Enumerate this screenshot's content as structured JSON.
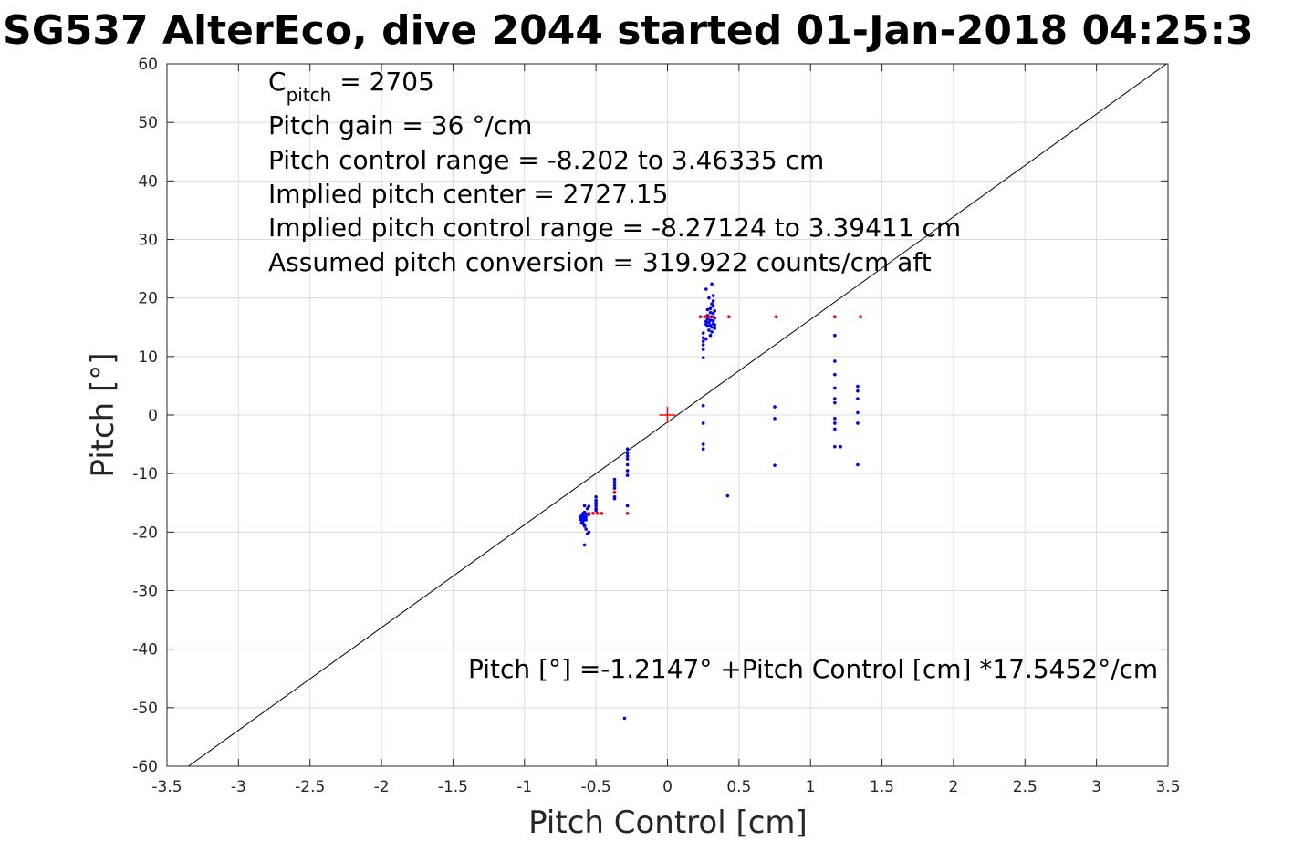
{
  "title": "SG537 AlterEco, dive 2044 started 01-Jan-2018 04:25:3",
  "chart_data": {
    "type": "scatter",
    "xlabel": "Pitch Control [cm]",
    "ylabel": "Pitch [°]",
    "xlim": [
      -3.5,
      3.5
    ],
    "ylim": [
      -60,
      60
    ],
    "xticks": [
      -3.5,
      -3,
      -2.5,
      -2,
      -1.5,
      -1,
      -0.5,
      0,
      0.5,
      1,
      1.5,
      2,
      2.5,
      3,
      3.5
    ],
    "yticks": [
      -60,
      -50,
      -40,
      -30,
      -20,
      -10,
      0,
      10,
      20,
      30,
      40,
      50,
      60
    ],
    "xtick_labels": [
      "-3.5",
      "-3",
      "-2.5",
      "-2",
      "-1.5",
      "-1",
      "-0.5",
      "0",
      "0.5",
      "1",
      "1.5",
      "2",
      "2.5",
      "3",
      "3.5"
    ],
    "ytick_labels": [
      "-60",
      "-50",
      "-40",
      "-30",
      "-20",
      "-10",
      "0",
      "10",
      "20",
      "30",
      "40",
      "50",
      "60"
    ],
    "grid": true,
    "annotations": {
      "c_pitch_main": "C",
      "c_pitch_sub": "pitch",
      "c_pitch_value": " = 2705",
      "lines": [
        "Pitch gain = 36 °/cm",
        "Pitch control range = -8.202 to 3.46335 cm",
        "Implied pitch center = 2727.15",
        "Implied pitch control range = -8.27124 to 3.39411 cm",
        "Assumed pitch conversion = 319.922 counts/cm aft"
      ],
      "fit_equation": "Pitch [°] =-1.2147° +Pitch Control [cm] *17.5452°/cm"
    },
    "fit_line": {
      "intercept": -1.2147,
      "slope": 17.5452
    },
    "center_marker": {
      "x": 0,
      "y": 0,
      "color": "#ff0000"
    },
    "series": [
      {
        "color": "#0000ff",
        "points": [
          [
            -0.6,
            -17.2
          ],
          [
            -0.6,
            -17.6
          ],
          [
            -0.6,
            -18.0
          ],
          [
            -0.6,
            -18.4
          ],
          [
            -0.61,
            -17.4
          ],
          [
            -0.61,
            -17.8
          ],
          [
            -0.59,
            -16.8
          ],
          [
            -0.59,
            -17.0
          ],
          [
            -0.59,
            -17.3
          ],
          [
            -0.59,
            -17.7
          ],
          [
            -0.59,
            -18.1
          ],
          [
            -0.59,
            -18.6
          ],
          [
            -0.58,
            -15.5
          ],
          [
            -0.58,
            -16.6
          ],
          [
            -0.58,
            -17.5
          ],
          [
            -0.58,
            -18.8
          ],
          [
            -0.58,
            -19.0
          ],
          [
            -0.58,
            -22.2
          ],
          [
            -0.57,
            -16.9
          ],
          [
            -0.57,
            -17.4
          ],
          [
            -0.57,
            -17.9
          ],
          [
            -0.57,
            -19.5
          ],
          [
            -0.56,
            -20.3
          ],
          [
            -0.56,
            -16.0
          ],
          [
            -0.55,
            -15.6
          ],
          [
            -0.55,
            -17.0
          ],
          [
            -0.55,
            -20.0
          ],
          [
            -0.5,
            -14.0
          ],
          [
            -0.5,
            -14.6
          ],
          [
            -0.5,
            -15.0
          ],
          [
            -0.5,
            -15.5
          ],
          [
            -0.5,
            -16.0
          ],
          [
            -0.5,
            -16.3
          ],
          [
            -0.37,
            -11.0
          ],
          [
            -0.37,
            -11.5
          ],
          [
            -0.37,
            -12.0
          ],
          [
            -0.37,
            -12.5
          ],
          [
            -0.37,
            -13.2
          ],
          [
            -0.37,
            -14.0
          ],
          [
            -0.37,
            -14.3
          ],
          [
            -0.28,
            -5.8
          ],
          [
            -0.28,
            -6.5
          ],
          [
            -0.28,
            -7.0
          ],
          [
            -0.28,
            -7.5
          ],
          [
            -0.28,
            -8.5
          ],
          [
            -0.28,
            -9.5
          ],
          [
            -0.28,
            -10.3
          ],
          [
            -0.28,
            -15.5
          ],
          [
            -0.3,
            -51.8
          ],
          [
            0.25,
            9.8
          ],
          [
            0.25,
            11.2
          ],
          [
            0.25,
            12.0
          ],
          [
            0.25,
            12.6
          ],
          [
            0.25,
            13.2
          ],
          [
            0.25,
            14.0
          ],
          [
            0.25,
            1.6
          ],
          [
            0.25,
            -1.4
          ],
          [
            0.25,
            -5.0
          ],
          [
            0.25,
            -5.8
          ],
          [
            0.27,
            21.5
          ],
          [
            0.27,
            13.0
          ],
          [
            0.27,
            15.5
          ],
          [
            0.27,
            16.0
          ],
          [
            0.28,
            15.2
          ],
          [
            0.28,
            16.4
          ],
          [
            0.28,
            17.0
          ],
          [
            0.28,
            18.0
          ],
          [
            0.29,
            14.5
          ],
          [
            0.29,
            15.8
          ],
          [
            0.29,
            20.0
          ],
          [
            0.3,
            13.6
          ],
          [
            0.3,
            15.3
          ],
          [
            0.3,
            16.2
          ],
          [
            0.3,
            17.5
          ],
          [
            0.3,
            18.2
          ],
          [
            0.31,
            16.8
          ],
          [
            0.31,
            19.0
          ],
          [
            0.31,
            22.4
          ],
          [
            0.31,
            14.2
          ],
          [
            0.31,
            15.0
          ],
          [
            0.32,
            15.6
          ],
          [
            0.32,
            16.1
          ],
          [
            0.32,
            17.4
          ],
          [
            0.32,
            18.6
          ],
          [
            0.32,
            19.5
          ],
          [
            0.32,
            20.4
          ],
          [
            0.33,
            15.4
          ],
          [
            0.33,
            16.6
          ],
          [
            0.33,
            17.8
          ],
          [
            0.33,
            14.8
          ],
          [
            0.42,
            -13.8
          ],
          [
            0.75,
            1.4
          ],
          [
            0.75,
            -0.6
          ],
          [
            0.75,
            -8.6
          ],
          [
            1.17,
            13.6
          ],
          [
            1.17,
            9.2
          ],
          [
            1.17,
            6.9
          ],
          [
            1.17,
            4.6
          ],
          [
            1.17,
            2.8
          ],
          [
            1.17,
            2.1
          ],
          [
            1.17,
            -0.6
          ],
          [
            1.17,
            -1.4
          ],
          [
            1.17,
            -2.4
          ],
          [
            1.17,
            -5.4
          ],
          [
            1.21,
            -5.4
          ],
          [
            1.33,
            4.9
          ],
          [
            1.33,
            4.1
          ],
          [
            1.33,
            2.8
          ],
          [
            1.33,
            0.4
          ],
          [
            1.33,
            -1.4
          ],
          [
            1.33,
            -8.5
          ]
        ]
      },
      {
        "color": "#ff0000",
        "points": [
          [
            -0.55,
            -16.8
          ],
          [
            -0.52,
            -16.8
          ],
          [
            -0.49,
            -16.8
          ],
          [
            -0.46,
            -16.8
          ],
          [
            -0.37,
            -13.2
          ],
          [
            -0.28,
            -16.8
          ],
          [
            0.23,
            16.8
          ],
          [
            0.26,
            16.8
          ],
          [
            0.29,
            16.8
          ],
          [
            0.32,
            16.8
          ],
          [
            0.43,
            16.8
          ],
          [
            0.76,
            16.8
          ],
          [
            1.17,
            16.8
          ],
          [
            1.35,
            16.8
          ]
        ]
      }
    ]
  }
}
